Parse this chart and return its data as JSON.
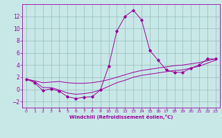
{
  "xlabel": "Windchill (Refroidissement éolien,°C)",
  "ylim": [
    -3,
    14
  ],
  "xlim": [
    -0.5,
    23.5
  ],
  "yticks": [
    -2,
    0,
    2,
    4,
    6,
    8,
    10,
    12
  ],
  "xticks": [
    0,
    1,
    2,
    3,
    4,
    5,
    6,
    7,
    8,
    9,
    10,
    11,
    12,
    13,
    14,
    15,
    16,
    17,
    18,
    19,
    20,
    21,
    22,
    23
  ],
  "bg_color": "#c8e8e8",
  "line_color": "#990099",
  "grid_color": "#99bbbb",
  "series0": [
    1.7,
    1.1,
    -0.2,
    0.1,
    -0.3,
    -1.2,
    -1.5,
    -1.3,
    -1.2,
    -0.1,
    3.8,
    9.6,
    12.0,
    13.0,
    11.4,
    6.4,
    4.8,
    3.2,
    2.8,
    2.8,
    3.5,
    4.0,
    5.0,
    5.0
  ],
  "series1": [
    1.7,
    1.3,
    0.3,
    0.3,
    -0.1,
    -0.6,
    -0.8,
    -0.7,
    -0.5,
    -0.1,
    0.5,
    1.1,
    1.5,
    2.0,
    2.3,
    2.5,
    2.7,
    2.9,
    3.1,
    3.2,
    3.5,
    3.8,
    4.3,
    4.8
  ],
  "series2": [
    1.7,
    1.4,
    1.1,
    1.2,
    1.3,
    1.1,
    1.0,
    1.0,
    1.1,
    1.3,
    1.6,
    2.0,
    2.4,
    2.8,
    3.1,
    3.3,
    3.5,
    3.7,
    3.9,
    4.0,
    4.2,
    4.4,
    4.7,
    5.0
  ]
}
